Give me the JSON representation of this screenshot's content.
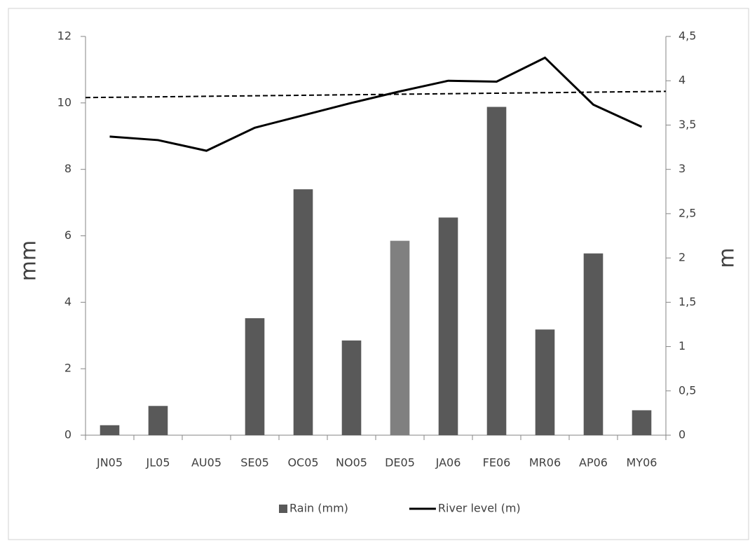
{
  "chart_data": {
    "type": "bar-line",
    "categories": [
      "JN05",
      "JL05",
      "AU05",
      "SE05",
      "OC05",
      "NO05",
      "DE05",
      "JA06",
      "FE06",
      "MR06",
      "AP06",
      "MY06"
    ],
    "series": [
      {
        "name": "Rain (mm)",
        "type": "bar",
        "axis": "y",
        "color": "#595959",
        "colors": [
          "#595959",
          "#595959",
          "#595959",
          "#595959",
          "#595959",
          "#595959",
          "#808080",
          "#595959",
          "#595959",
          "#595959",
          "#595959",
          "#595959"
        ],
        "values": [
          0.3,
          0.88,
          0,
          3.52,
          7.4,
          2.85,
          5.85,
          6.55,
          9.88,
          3.18,
          5.47,
          0.75
        ]
      },
      {
        "name": "River level (m)",
        "type": "line",
        "axis": "y2",
        "color": "#000000",
        "values": [
          3.37,
          3.33,
          3.21,
          3.47,
          3.61,
          3.75,
          3.88,
          4.0,
          3.99,
          4.26,
          3.73,
          3.48
        ]
      }
    ],
    "trendline": {
      "axis": "y2",
      "start": 3.81,
      "end": 3.88,
      "color": "#000000",
      "dashed": true
    },
    "ylabel": "mm",
    "y2label": "m",
    "ylim": [
      0,
      12
    ],
    "yticks": [
      0,
      2,
      4,
      6,
      8,
      10,
      12
    ],
    "y2lim": [
      0,
      4.5
    ],
    "y2ticks": [
      0,
      {
        "value": 0.5,
        "label": "0,5"
      },
      1,
      {
        "value": 1.5,
        "label": "1,5"
      },
      2,
      {
        "value": 2.5,
        "label": "2,5"
      },
      3,
      {
        "value": 3.5,
        "label": "3,5"
      },
      4,
      {
        "value": 4.5,
        "label": "4,5"
      }
    ],
    "grid": false,
    "legend": "bottom"
  }
}
